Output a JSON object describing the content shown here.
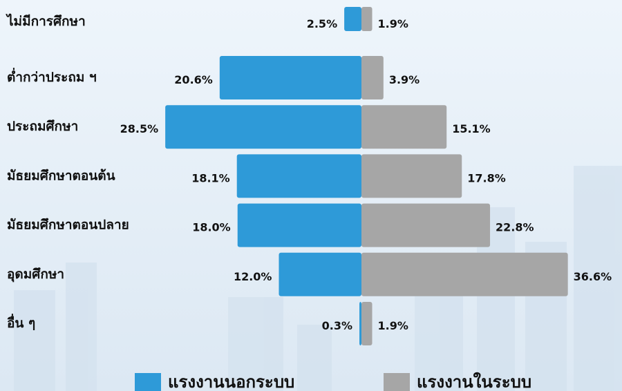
{
  "chart_data": {
    "type": "diverging-bar",
    "categories": [
      "ไม่มีการศึกษา",
      "ต่ำกว่าประถม ฯ",
      "ประถมศึกษา",
      "มัธยมศึกษาตอนต้น",
      "มัธยมศึกษาตอนปลาย",
      "อุดมศึกษา",
      "อื่น ๆ"
    ],
    "series": [
      {
        "name": "แรงงานนอกระบบ",
        "color": "#2e9ad8",
        "side": "left",
        "values": [
          2.5,
          20.6,
          28.5,
          18.1,
          18.0,
          12.0,
          0.3
        ],
        "value_labels": [
          "2.5%",
          "20.6%",
          "28.5%",
          "18.1%",
          "18.0%",
          "12.0%",
          "0.3%"
        ]
      },
      {
        "name": "แรงงานในระบบ",
        "color": "#a6a6a6",
        "side": "right",
        "values": [
          1.9,
          3.9,
          15.1,
          17.8,
          22.8,
          36.6,
          1.9
        ],
        "value_labels": [
          "1.9%",
          "3.9%",
          "15.1%",
          "17.8%",
          "22.8%",
          "36.6%",
          "1.9%"
        ]
      }
    ]
  }
}
